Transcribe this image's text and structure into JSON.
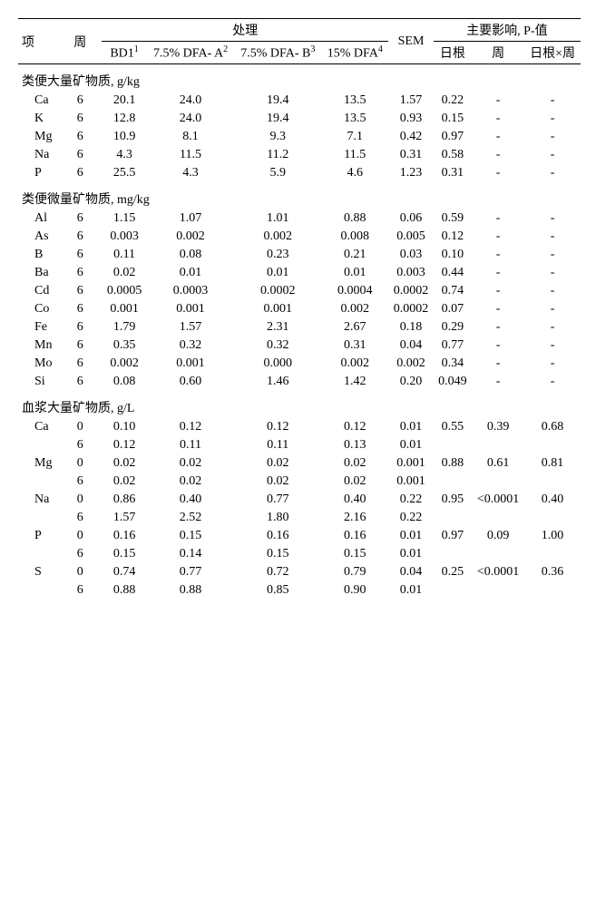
{
  "headers": {
    "item": "项",
    "week": "周",
    "treatment": "处理",
    "sem": "SEM",
    "main_effect": "主要影响, P-值",
    "diet": "日根",
    "week_p": "周",
    "diet_x_week": "日根×周",
    "bd1": "BD1",
    "bd1_sup": "1",
    "dfaa": "7.5% DFA- A",
    "dfaa_sup": "2",
    "dfab": "7.5% DFA- B",
    "dfab_sup": "3",
    "dfa15": "15% DFA",
    "dfa15_sup": "4"
  },
  "sections": [
    {
      "title": "类便大量矿物质, g/kg",
      "rows": [
        {
          "label": "Ca",
          "week": "6",
          "v": [
            "20.1",
            "24.0",
            "19.4",
            "13.5"
          ],
          "sem": "1.57",
          "diet": "0.22",
          "wp": "-",
          "dxw": "-"
        },
        {
          "label": "K",
          "week": "6",
          "v": [
            "12.8",
            "24.0",
            "19.4",
            "13.5"
          ],
          "sem": "0.93",
          "diet": "0.15",
          "wp": "-",
          "dxw": "-"
        },
        {
          "label": "Mg",
          "week": "6",
          "v": [
            "10.9",
            "8.1",
            "9.3",
            "7.1"
          ],
          "sem": "0.42",
          "diet": "0.97",
          "wp": "-",
          "dxw": "-"
        },
        {
          "label": "Na",
          "week": "6",
          "v": [
            "4.3",
            "11.5",
            "11.2",
            "11.5"
          ],
          "sem": "0.31",
          "diet": "0.58",
          "wp": "-",
          "dxw": "-"
        },
        {
          "label": "P",
          "week": "6",
          "v": [
            "25.5",
            "4.3",
            "5.9",
            "4.6"
          ],
          "sem": "1.23",
          "diet": "0.31",
          "wp": "-",
          "dxw": "-"
        }
      ]
    },
    {
      "title": "类便微量矿物质, mg/kg",
      "rows": [
        {
          "label": "Al",
          "week": "6",
          "v": [
            "1.15",
            "1.07",
            "1.01",
            "0.88"
          ],
          "sem": "0.06",
          "diet": "0.59",
          "wp": "-",
          "dxw": "-"
        },
        {
          "label": "As",
          "week": "6",
          "v": [
            "0.003",
            "0.002",
            "0.002",
            "0.008"
          ],
          "sem": "0.005",
          "diet": "0.12",
          "wp": "-",
          "dxw": "-"
        },
        {
          "label": "B",
          "week": "6",
          "v": [
            "0.11",
            "0.08",
            "0.23",
            "0.21"
          ],
          "sem": "0.03",
          "diet": "0.10",
          "wp": "-",
          "dxw": "-"
        },
        {
          "label": "Ba",
          "week": "6",
          "v": [
            "0.02",
            "0.01",
            "0.01",
            "0.01"
          ],
          "sem": "0.003",
          "diet": "0.44",
          "wp": "-",
          "dxw": "-"
        },
        {
          "label": "Cd",
          "week": "6",
          "v": [
            "0.0005",
            "0.0003",
            "0.0002",
            "0.0004"
          ],
          "sem": "0.0002",
          "diet": "0.74",
          "wp": "-",
          "dxw": "-"
        },
        {
          "label": "Co",
          "week": "6",
          "v": [
            "0.001",
            "0.001",
            "0.001",
            "0.002"
          ],
          "sem": "0.0002",
          "diet": "0.07",
          "wp": "-",
          "dxw": "-"
        },
        {
          "label": "Fe",
          "week": "6",
          "v": [
            "1.79",
            "1.57",
            "2.31",
            "2.67"
          ],
          "sem": "0.18",
          "diet": "0.29",
          "wp": "-",
          "dxw": "-"
        },
        {
          "label": "Mn",
          "week": "6",
          "v": [
            "0.35",
            "0.32",
            "0.32",
            "0.31"
          ],
          "sem": "0.04",
          "diet": "0.77",
          "wp": "-",
          "dxw": "-"
        },
        {
          "label": "Mo",
          "week": "6",
          "v": [
            "0.002",
            "0.001",
            "0.000",
            "0.002"
          ],
          "sem": "0.002",
          "diet": "0.34",
          "wp": "-",
          "dxw": "-"
        },
        {
          "label": "Si",
          "week": "6",
          "v": [
            "0.08",
            "0.60",
            "1.46",
            "1.42"
          ],
          "sem": "0.20",
          "diet": "0.049",
          "wp": "-",
          "dxw": "-"
        }
      ]
    },
    {
      "title": "血浆大量矿物质, g/L",
      "rows": [
        {
          "label": "Ca",
          "week": "0",
          "v": [
            "0.10",
            "0.12",
            "0.12",
            "0.12"
          ],
          "sem": "0.01",
          "diet": "0.55",
          "wp": "0.39",
          "dxw": "0.68"
        },
        {
          "label": "",
          "week": "6",
          "v": [
            "0.12",
            "0.11",
            "0.11",
            "0.13"
          ],
          "sem": "0.01",
          "diet": "",
          "wp": "",
          "dxw": ""
        },
        {
          "label": "Mg",
          "week": "0",
          "v": [
            "0.02",
            "0.02",
            "0.02",
            "0.02"
          ],
          "sem": "0.001",
          "diet": "0.88",
          "wp": "0.61",
          "dxw": "0.81"
        },
        {
          "label": "",
          "week": "6",
          "v": [
            "0.02",
            "0.02",
            "0.02",
            "0.02"
          ],
          "sem": "0.001",
          "diet": "",
          "wp": "",
          "dxw": ""
        },
        {
          "label": "Na",
          "week": "0",
          "v": [
            "0.86",
            "0.40",
            "0.77",
            "0.40"
          ],
          "sem": "0.22",
          "diet": "0.95",
          "wp": "<0.0001",
          "dxw": "0.40"
        },
        {
          "label": "",
          "week": "6",
          "v": [
            "1.57",
            "2.52",
            "1.80",
            "2.16"
          ],
          "sem": "0.22",
          "diet": "",
          "wp": "",
          "dxw": ""
        },
        {
          "label": "P",
          "week": "0",
          "v": [
            "0.16",
            "0.15",
            "0.16",
            "0.16"
          ],
          "sem": "0.01",
          "diet": "0.97",
          "wp": "0.09",
          "dxw": "1.00"
        },
        {
          "label": "",
          "week": "6",
          "v": [
            "0.15",
            "0.14",
            "0.15",
            "0.15"
          ],
          "sem": "0.01",
          "diet": "",
          "wp": "",
          "dxw": ""
        },
        {
          "label": "S",
          "week": "0",
          "v": [
            "0.74",
            "0.77",
            "0.72",
            "0.79"
          ],
          "sem": "0.04",
          "diet": "0.25",
          "wp": "<0.0001",
          "dxw": "0.36"
        },
        {
          "label": "",
          "week": "6",
          "v": [
            "0.88",
            "0.88",
            "0.85",
            "0.90"
          ],
          "sem": "0.01",
          "diet": "",
          "wp": "",
          "dxw": ""
        }
      ]
    }
  ]
}
